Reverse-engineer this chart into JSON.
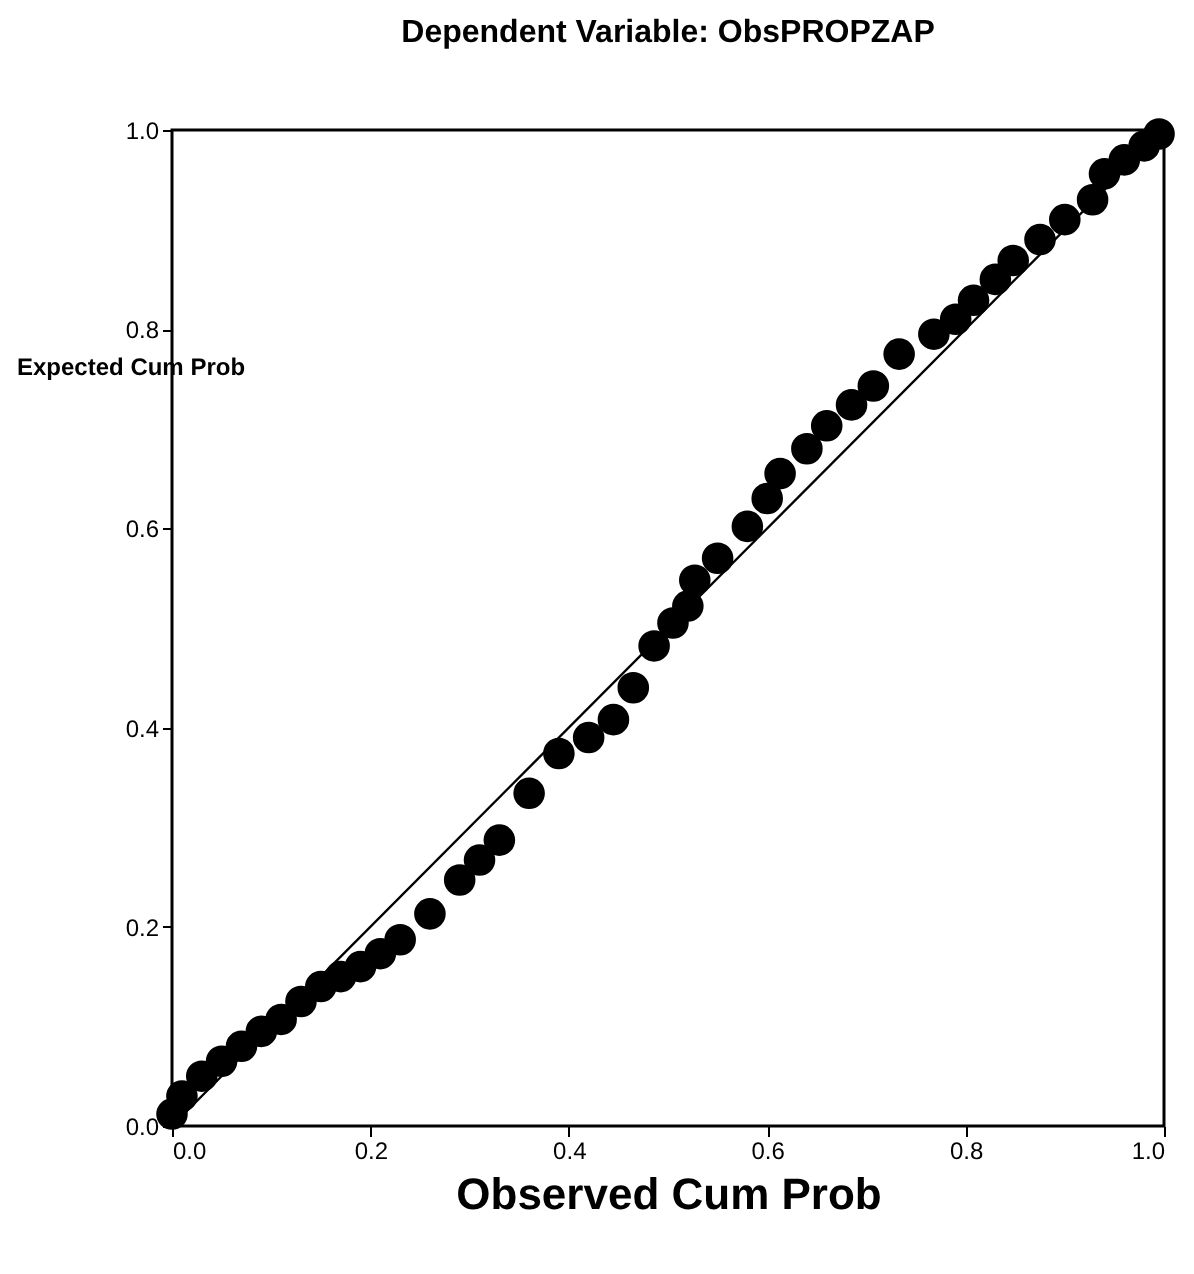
{
  "chart_data": {
    "type": "scatter",
    "title": "Dependent Variable: ObsPROPZAP",
    "xlabel": "Observed Cum Prob",
    "ylabel": "Expected Cum Prob",
    "xlim": [
      0,
      1
    ],
    "ylim": [
      0,
      1
    ],
    "xticks": [
      {
        "value": 0,
        "label": "0.0"
      },
      0.2,
      0.4,
      0.6,
      0.8,
      {
        "value": 1,
        "label": "1.0"
      }
    ],
    "yticks": [
      {
        "value": 0,
        "label": "0.0"
      },
      0.2,
      0.4,
      0.6,
      0.8,
      {
        "value": 1,
        "label": "1.0"
      }
    ],
    "marker": "circle",
    "series": [
      {
        "color": "#000000",
        "x": [
          0,
          0.01,
          0.03,
          0.05,
          0.07,
          0.09,
          0.11,
          0.13,
          0.15,
          0.17,
          0.19,
          0.21,
          0.23,
          0.26,
          0.29,
          0.31,
          0.33,
          0.36,
          0.39,
          0.42,
          0.445,
          0.465,
          0.486,
          0.505,
          0.52,
          0.527,
          0.55,
          0.58,
          0.6,
          0.613,
          0.64,
          0.66,
          0.685,
          0.707,
          0.733,
          0.768,
          0.79,
          0.808,
          0.83,
          0.848,
          0.875,
          0.9,
          0.928,
          0.94,
          0.96,
          0.98,
          0.995
        ],
        "values": [
          0.012,
          0.03,
          0.05,
          0.065,
          0.08,
          0.095,
          0.107,
          0.125,
          0.14,
          0.15,
          0.16,
          0.173,
          0.187,
          0.213,
          0.247,
          0.267,
          0.287,
          0.334,
          0.374,
          0.39,
          0.408,
          0.44,
          0.482,
          0.505,
          0.522,
          0.548,
          0.57,
          0.602,
          0.63,
          0.655,
          0.68,
          0.703,
          0.724,
          0.743,
          0.775,
          0.795,
          0.81,
          0.829,
          0.85,
          0.869,
          0.89,
          0.91,
          0.93,
          0.956,
          0.97,
          0.984,
          0.996
        ]
      },
      {
        "type": "line",
        "marker": "none",
        "color": "#000000",
        "x": [
          0,
          1
        ],
        "values": [
          0,
          1
        ]
      }
    ]
  }
}
